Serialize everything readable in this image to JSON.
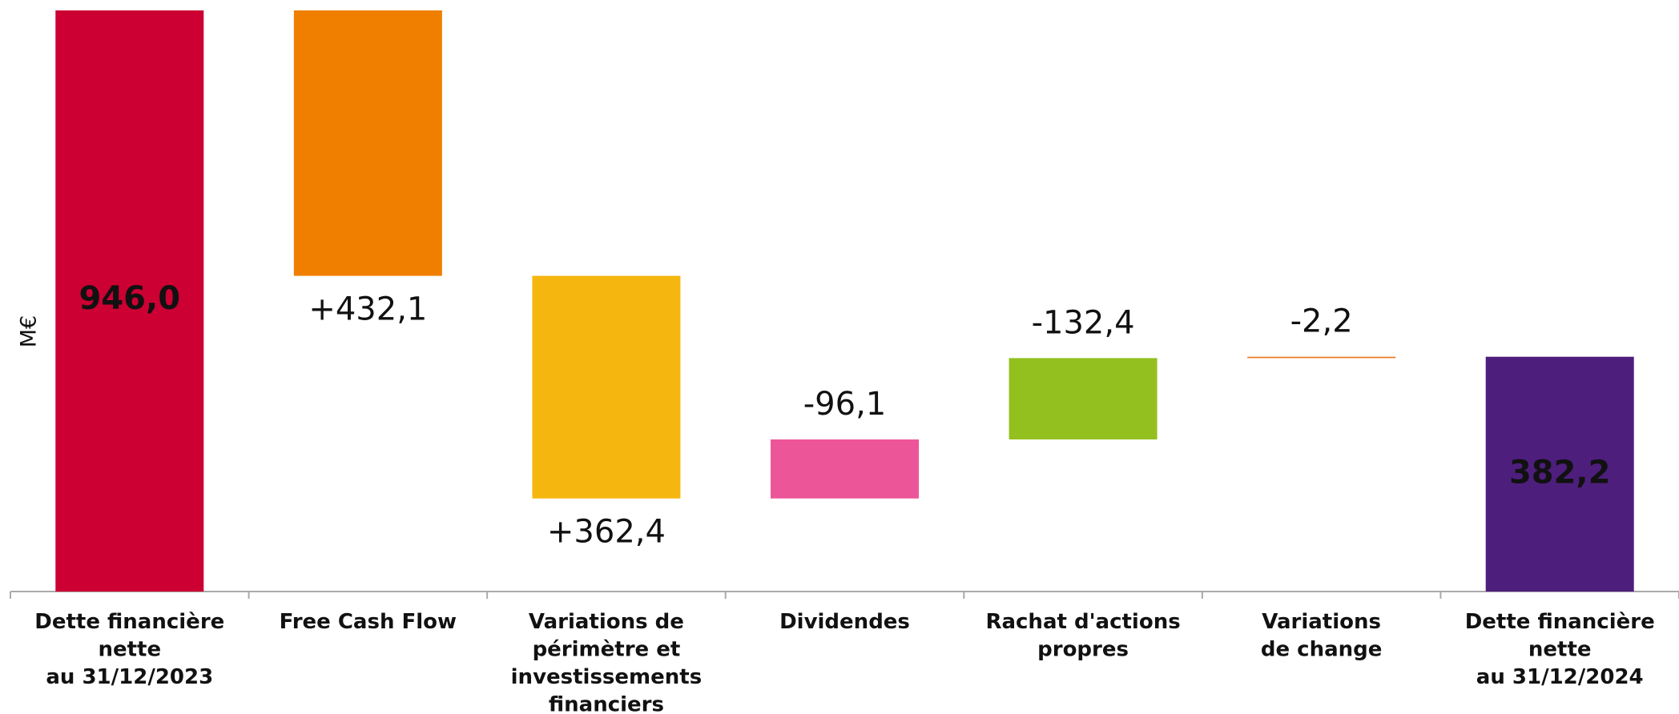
{
  "chart_data": {
    "type": "waterfall",
    "y_label": "M€",
    "categories": [
      [
        "Dette financière",
        "nette",
        "au 31/12/2023"
      ],
      [
        "Free Cash Flow"
      ],
      [
        "Variations de",
        "périmètre et",
        "investissements",
        "financiers"
      ],
      [
        "Dividendes"
      ],
      [
        "Rachat d'actions",
        "propres"
      ],
      [
        "Variations",
        "de change"
      ],
      [
        "Dette financière",
        "nette",
        "au 31/12/2024"
      ]
    ],
    "values": [
      946.0,
      432.1,
      362.4,
      -96.1,
      -132.4,
      -2.2,
      382.2
    ],
    "value_labels": [
      "946,0",
      "+432,1",
      "+362,4",
      "-96,1",
      "-132,4",
      "-2,2",
      "382,2"
    ],
    "totals": [
      true,
      false,
      false,
      false,
      false,
      false,
      true
    ],
    "colors": [
      "#cc0033",
      "#f07f00",
      "#f5b70f",
      "#ec5598",
      "#93c01f",
      "#ee7a1a",
      "#4e1e7d"
    ]
  }
}
